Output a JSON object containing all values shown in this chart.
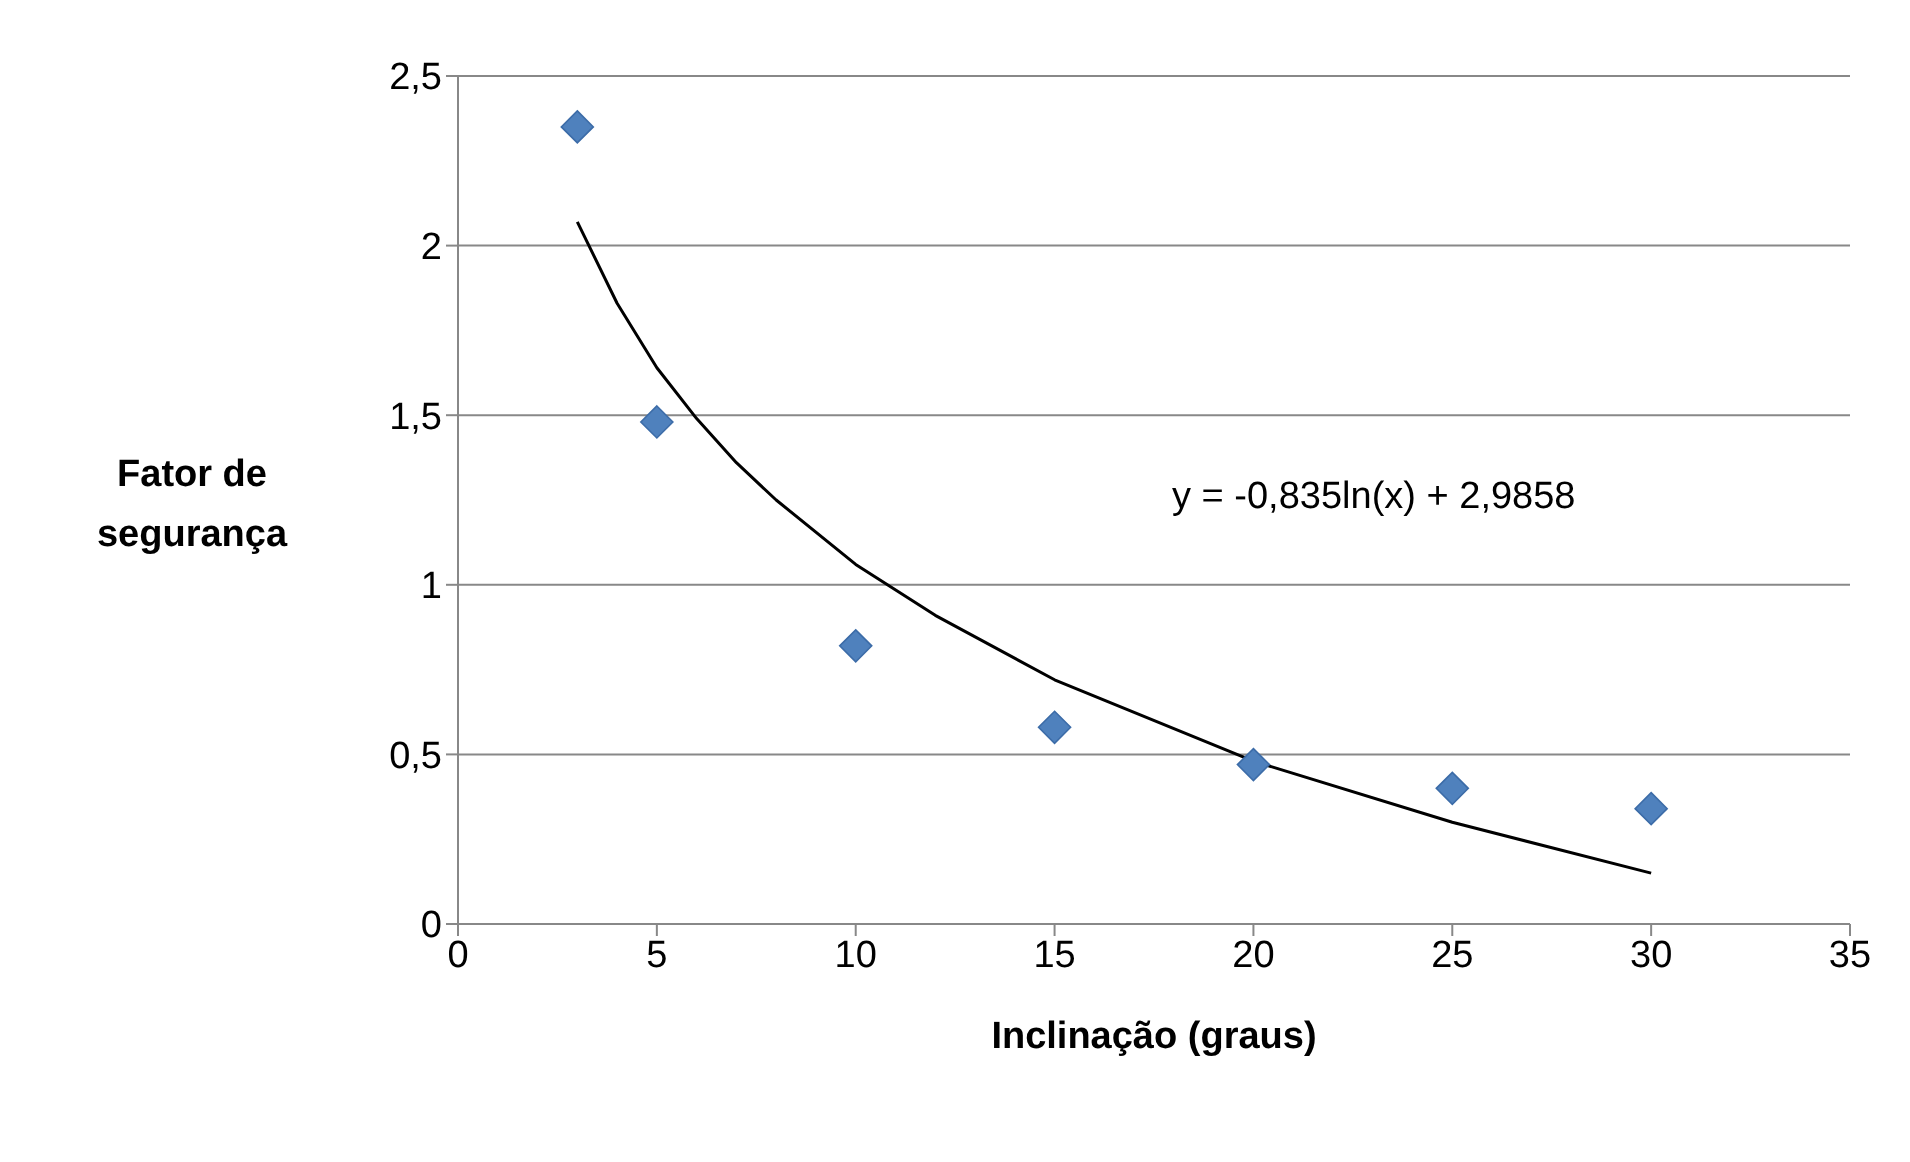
{
  "chart_data": {
    "type": "scatter",
    "xlabel": "Inclinação (graus)",
    "ylabel": "Fator de segurança",
    "xlim": [
      0,
      35
    ],
    "xticks": [
      0,
      5,
      10,
      15,
      20,
      25,
      30,
      35
    ],
    "ylim": [
      0,
      2.5
    ],
    "yticks": [
      0,
      {
        "value": 0.5,
        "label": "0,5"
      },
      1,
      {
        "value": 1.5,
        "label": "1,5"
      },
      2,
      {
        "value": 2.5,
        "label": "2,5"
      }
    ],
    "grid": "y",
    "marker": "diamond",
    "series": [
      {
        "type": "scatter",
        "color": "#4f81bd",
        "x": [
          3,
          5,
          10,
          15,
          20,
          25,
          30
        ],
        "values": [
          2.35,
          1.48,
          0.82,
          0.58,
          0.47,
          0.4,
          0.34
        ]
      },
      {
        "type": "line",
        "color": "#000000",
        "marker": "none",
        "x": [
          3,
          4,
          5,
          6,
          7,
          8,
          10,
          12,
          15,
          20,
          25,
          30
        ],
        "values": [
          2.07,
          1.83,
          1.64,
          1.49,
          1.36,
          1.25,
          1.06,
          0.91,
          0.72,
          0.48,
          0.3,
          0.15
        ]
      }
    ],
    "annotations": [
      "y = -0,835ln(x) + 2,9858"
    ]
  }
}
